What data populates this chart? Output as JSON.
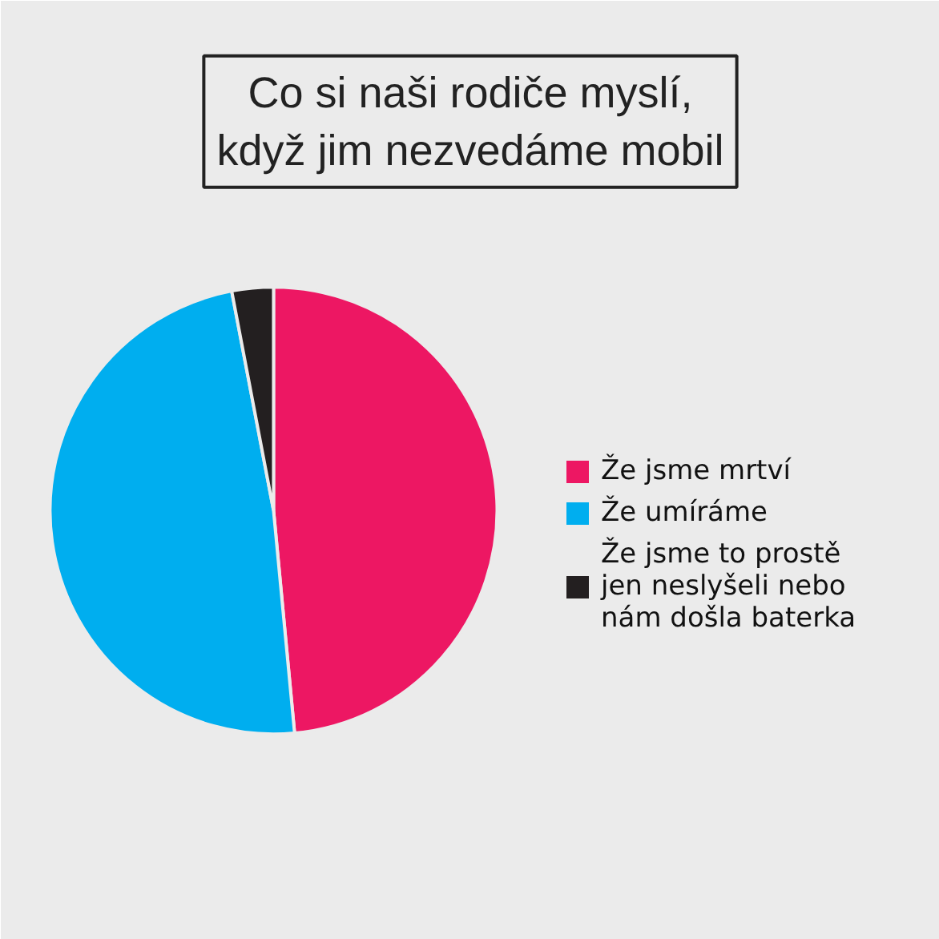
{
  "chart_data": {
    "type": "pie",
    "title": "Co si naši rodiče myslí,\nkdyž jim nezvedáme mobil",
    "categories": [
      "Že jsme mrtví",
      "Že umíráme",
      "Že jsme to prostě jen neslyšeli nebo nám došla baterka"
    ],
    "values": [
      48.5,
      48.5,
      3
    ],
    "colors": [
      "#ed1763",
      "#00aeef",
      "#231f20"
    ],
    "legend": "right"
  }
}
